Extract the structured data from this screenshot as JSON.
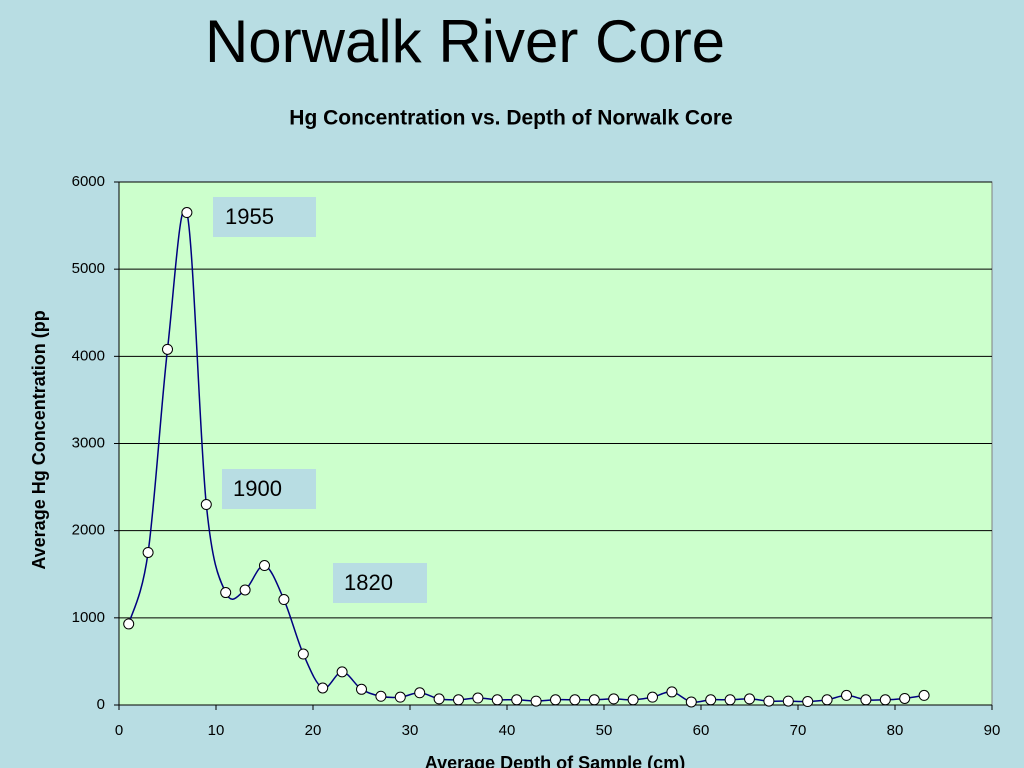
{
  "slide": {
    "title": "Norwalk River Core"
  },
  "chart_data": {
    "type": "line",
    "title": "Hg Concentration vs. Depth of Norwalk Core",
    "x_label": "Average Depth of Sample (cm)",
    "y_label": "Average Hg Concentration (pp",
    "x": [
      1,
      3,
      5,
      7,
      9,
      11,
      13,
      15,
      17,
      19,
      21,
      23,
      25,
      27,
      29,
      31,
      33,
      35,
      37,
      39,
      41,
      43,
      45,
      47,
      49,
      51,
      53,
      55,
      57,
      59,
      61,
      63,
      65,
      67,
      69,
      71,
      73,
      75,
      77,
      79,
      81,
      83
    ],
    "values": [
      930,
      1750,
      4080,
      5650,
      2300,
      1290,
      1320,
      1600,
      1210,
      585,
      195,
      380,
      180,
      100,
      90,
      140,
      70,
      60,
      80,
      60,
      60,
      45,
      60,
      60,
      60,
      70,
      60,
      90,
      150,
      35,
      60,
      60,
      70,
      45,
      45,
      40,
      60,
      110,
      60,
      60,
      75,
      110
    ],
    "color": "#000080",
    "marker_fill": "#ffffff",
    "plot_background": "#ccffcc",
    "xlim": [
      0,
      90
    ],
    "xticks": [
      0,
      10,
      20,
      30,
      40,
      50,
      60,
      70,
      80,
      90
    ],
    "ylim": [
      0,
      6000
    ],
    "yticks": [
      0,
      1000,
      2000,
      3000,
      4000,
      5000,
      6000
    ],
    "grid": true,
    "annotations": [
      "1955",
      "1900",
      "1820"
    ]
  }
}
